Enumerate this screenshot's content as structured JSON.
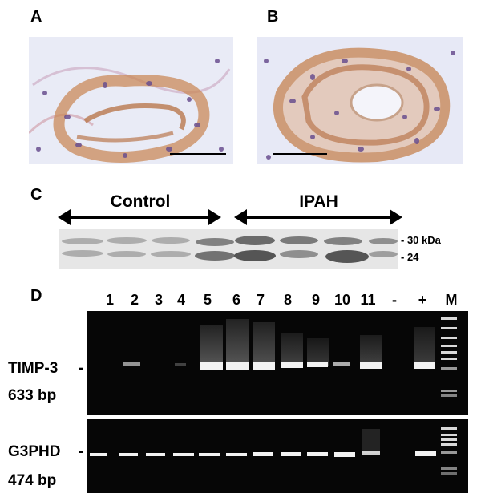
{
  "panels": {
    "a": {
      "letter": "A"
    },
    "b": {
      "letter": "B"
    },
    "c": {
      "letter": "C",
      "group_control": "Control",
      "group_ipah": "IPAH",
      "mw_upper": "- 30 kDa",
      "mw_lower": "- 24"
    },
    "d": {
      "letter": "D",
      "lane_labels": [
        "1",
        "2",
        "3",
        "4",
        "5",
        "6",
        "7",
        "8",
        "9",
        "10",
        "11",
        "-",
        "+",
        "M"
      ],
      "top_gel": {
        "gene": "TIMP-3",
        "size": "633 bp",
        "tick": "-"
      },
      "bottom_gel": {
        "gene": "G3PHD",
        "size": "474 bp",
        "tick": "-"
      }
    }
  },
  "colors": {
    "tissue_background": "#e8eaf6",
    "stain_brown": "#c98a5a",
    "nuclei_purple": "#6a4f8f",
    "gel_background": "#060606",
    "band_white": "#f2f2f2"
  }
}
